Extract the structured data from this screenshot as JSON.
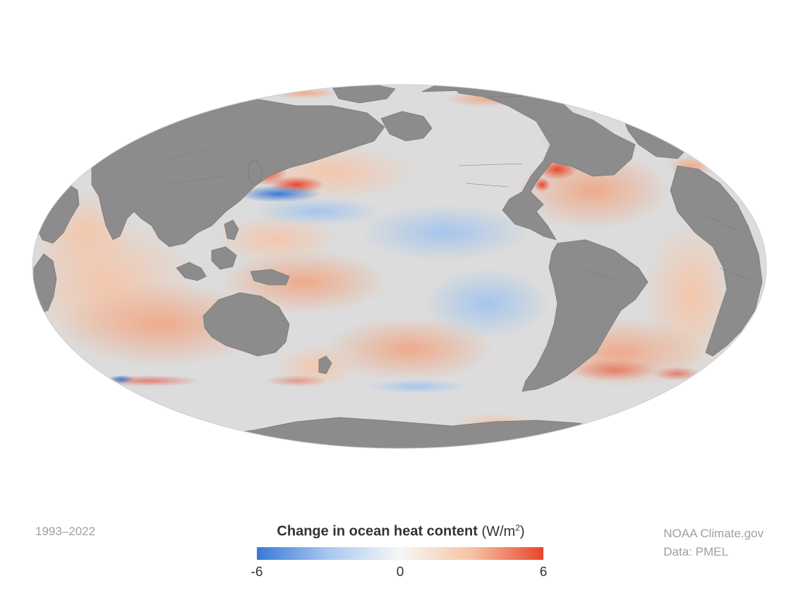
{
  "period": "1993–2022",
  "legend": {
    "title": "Change in ocean heat content",
    "unit_open": "(W/m",
    "unit_exp": "2",
    "unit_close": ")",
    "min_label": "-6",
    "mid_label": "0",
    "max_label": "6",
    "colors": {
      "min": "#3a78d6",
      "mid": "#f7f7f7",
      "max": "#e8452c"
    }
  },
  "credit": {
    "line1": "NOAA Climate.gov",
    "line2": "Data: PMEL"
  },
  "map": {
    "projection": "mollweide",
    "land_color": "#8c8c8c",
    "ocean_color": "#d9d9d9"
  }
}
